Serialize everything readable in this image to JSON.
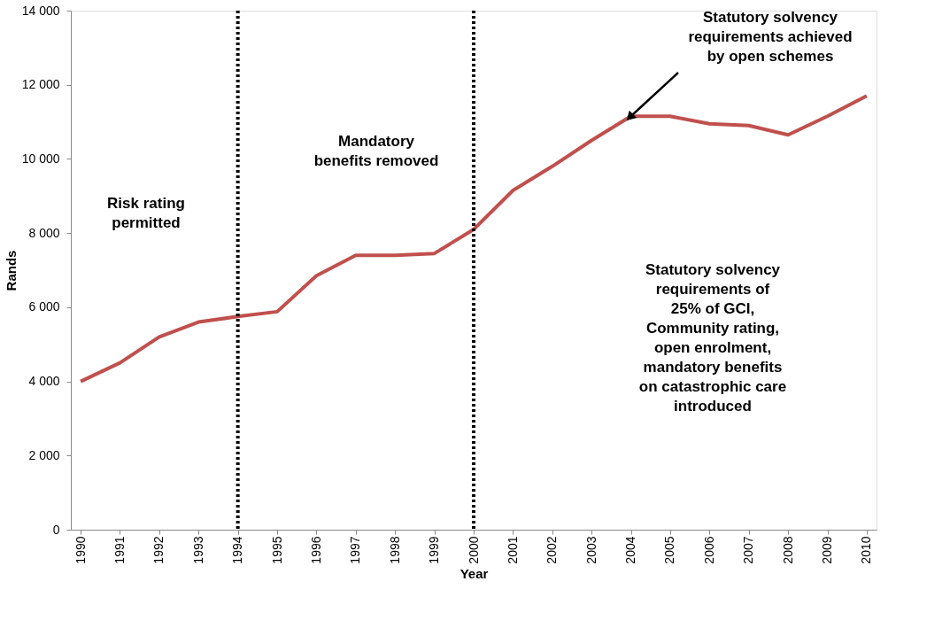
{
  "chart_data": {
    "type": "line",
    "xlabel": "Year",
    "ylabel": "Rands",
    "categories": [
      "1990",
      "1991",
      "1992",
      "1993",
      "1994",
      "1995",
      "1996",
      "1997",
      "1998",
      "1999",
      "2000",
      "2001",
      "2002",
      "2003",
      "2004",
      "2005",
      "2006",
      "2007",
      "2008",
      "2009",
      "2010"
    ],
    "series": [
      {
        "color": "#c0504d",
        "values": [
          4000,
          4500,
          5200,
          5600,
          5750,
          5880,
          6850,
          7400,
          7400,
          7450,
          8100,
          9150,
          9800,
          10500,
          11150,
          11150,
          10950,
          10900,
          10650,
          11150,
          11700
        ]
      }
    ],
    "ylim": [
      0,
      14000
    ],
    "yticks": [
      0,
      {
        "value": 2000,
        "label": "2 000"
      },
      {
        "value": 4000,
        "label": "4 000"
      },
      {
        "value": 6000,
        "label": "6 000"
      },
      {
        "value": 8000,
        "label": "8 000"
      },
      {
        "value": 10000,
        "label": "10 000"
      },
      {
        "value": 12000,
        "label": "12 000"
      },
      {
        "value": 14000,
        "label": "14 000"
      }
    ],
    "grid": false,
    "marker": "none",
    "line_style": "solid",
    "ref_lines": [
      {
        "axis": "x",
        "value": "1994",
        "color": "#000000",
        "line_style": "dotted"
      },
      {
        "axis": "x",
        "value": "2000",
        "color": "#000000",
        "line_style": "dotted"
      }
    ],
    "annotations": [
      "Risk rating permitted",
      "Mandatory benefits removed",
      {
        "text": "Statutory solvency requirements achieved by open schemes",
        "x": "2004",
        "y": 11150
      },
      "Statutory solvency requirements of 25% of GCI, Community rating, open enrolment, mandatory benefits on catastrophic care introduced"
    ]
  }
}
